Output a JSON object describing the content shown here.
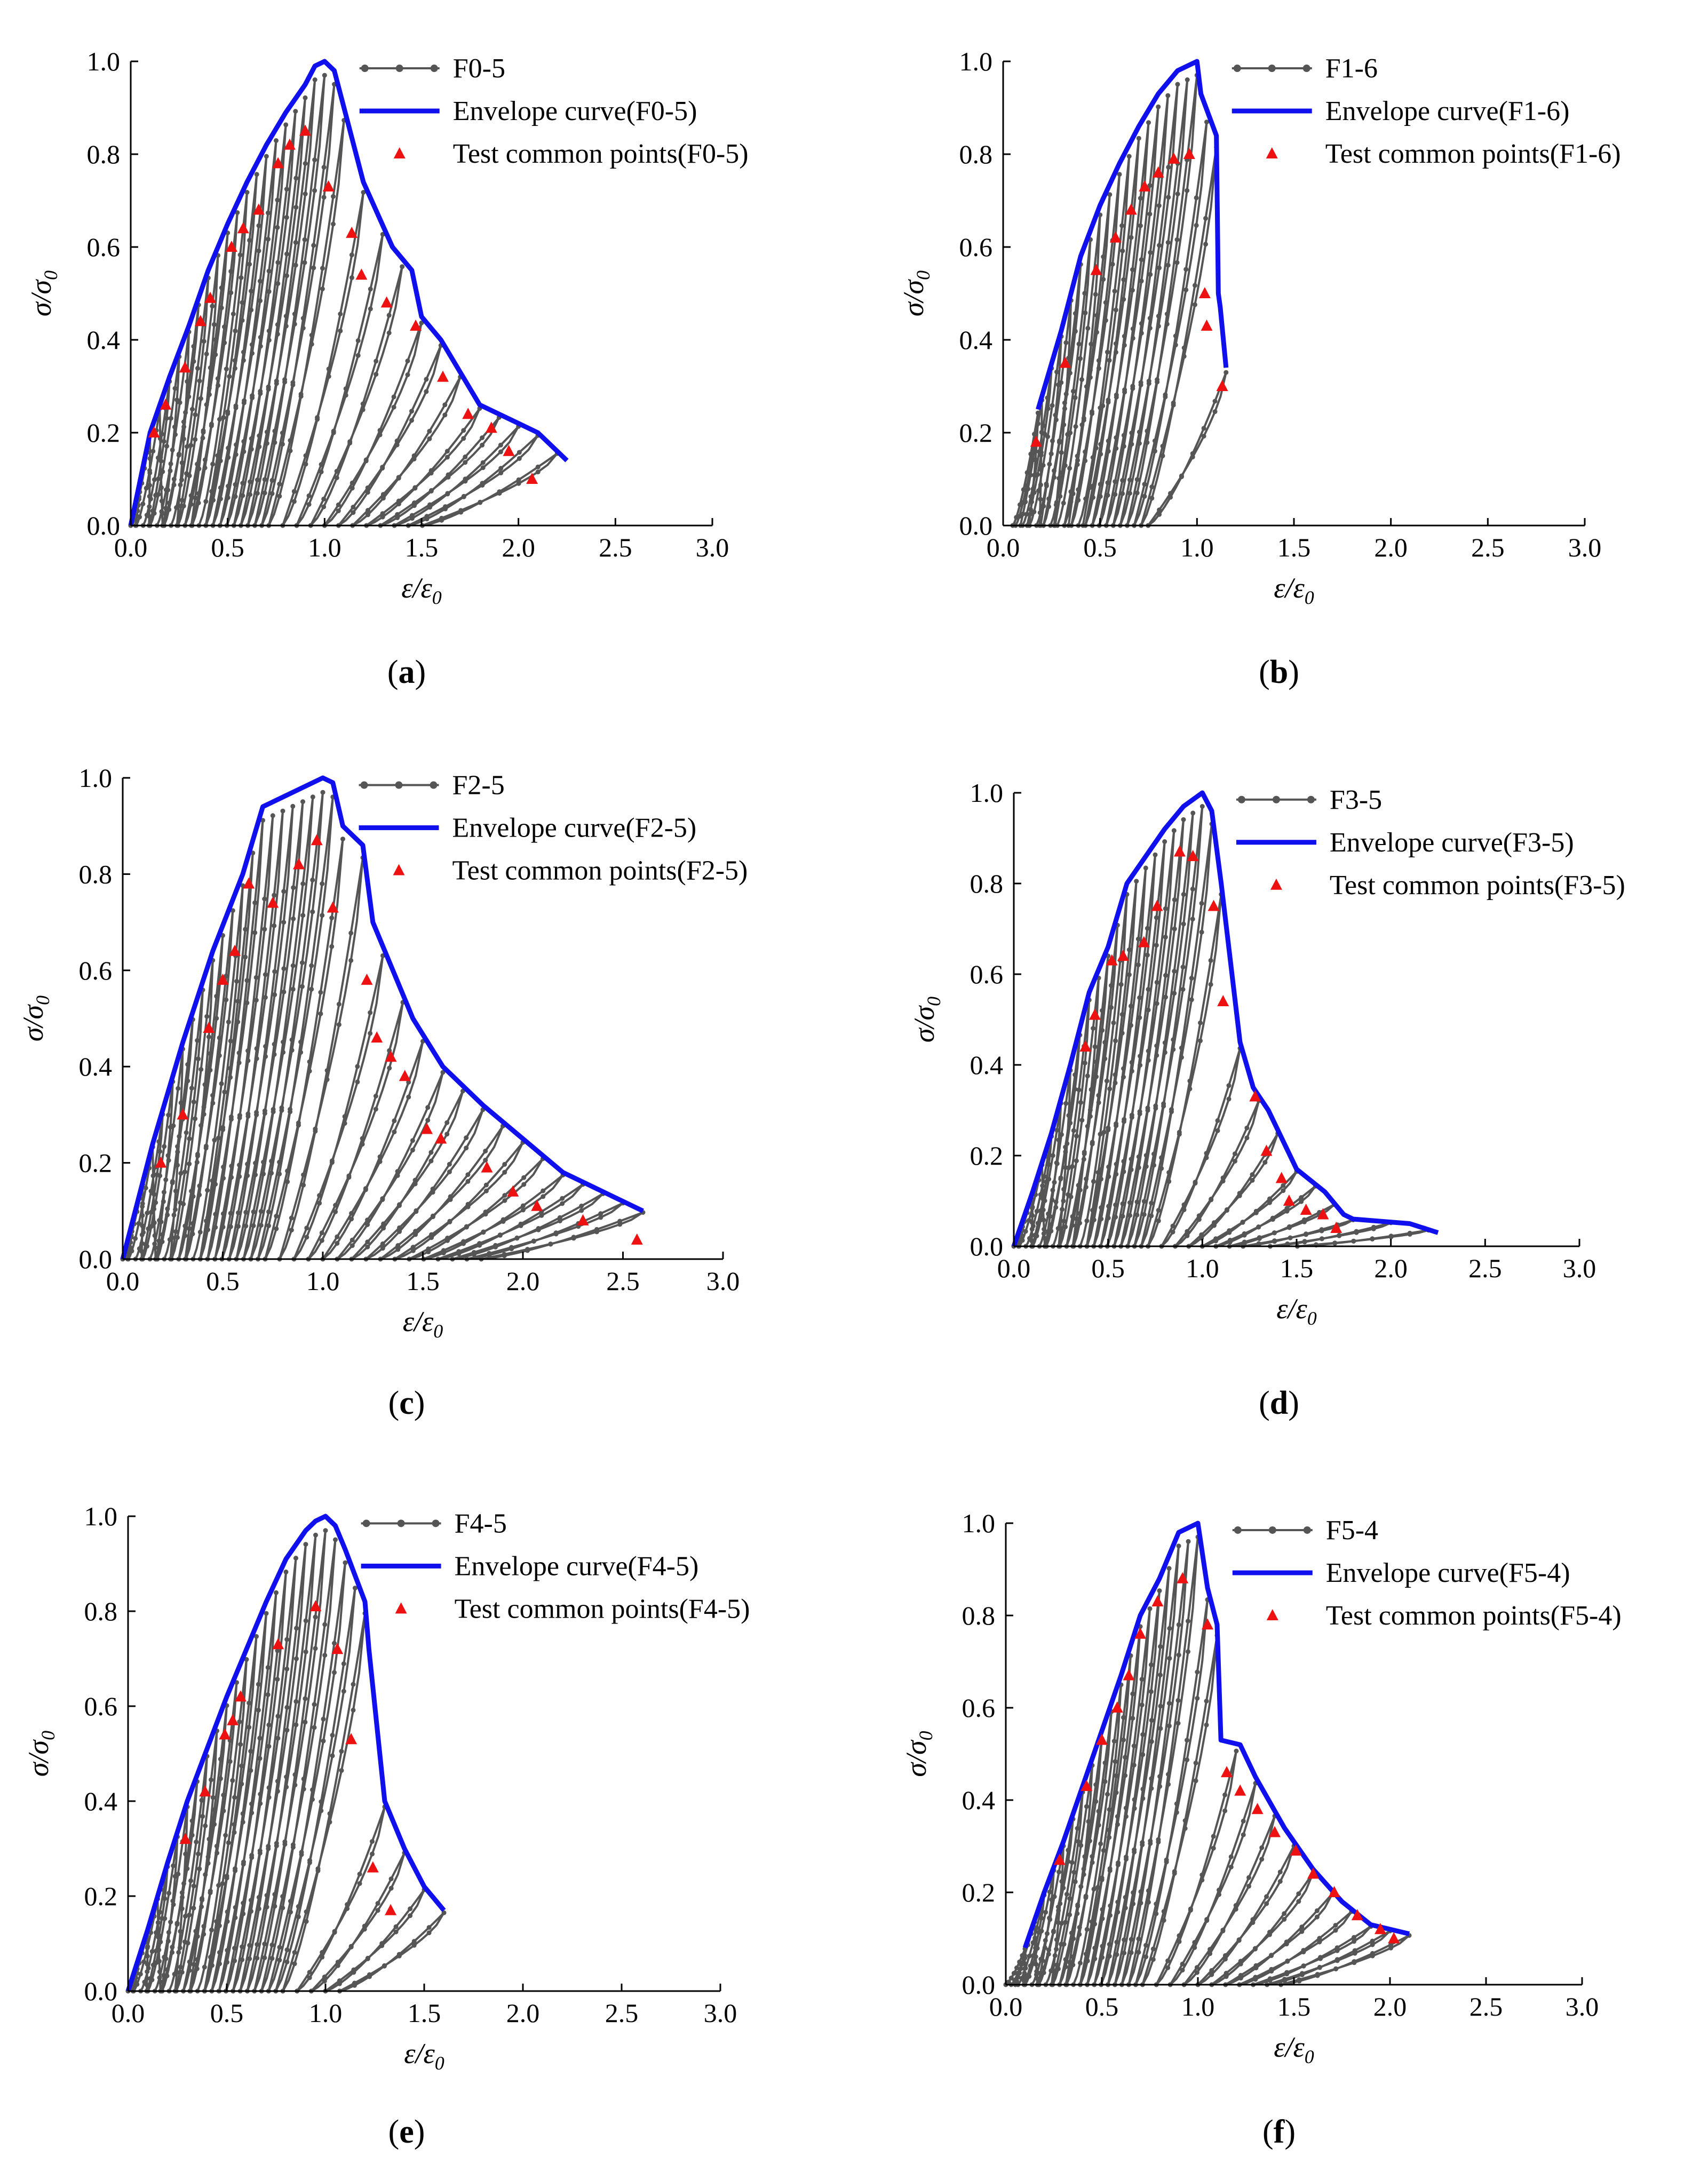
{
  "figure": {
    "xlabel": "ε/ε",
    "xlabel_sub": "0",
    "ylabel": "σ/σ",
    "ylabel_sub": "0",
    "colors": {
      "cycles": "#555555",
      "envelope": "#1010ee",
      "points": "#ee1111",
      "axis": "#000000"
    }
  },
  "chart_data": [
    {
      "type": "line",
      "panel_label": "a",
      "xlim": [
        0,
        3.0
      ],
      "ylim": [
        0,
        1.0
      ],
      "xticks": [
        "0.0",
        "0.5",
        "1.0",
        "1.5",
        "2.0",
        "2.5",
        "3.0"
      ],
      "yticks": [
        "0.0",
        "0.2",
        "0.4",
        "0.6",
        "0.8",
        "1.0"
      ],
      "legend": {
        "position": "top-right",
        "series_label": "F0-5",
        "envelope_label": "Envelope curve(F0-5)",
        "points_label": "Test common points(F0-5)"
      },
      "envelope": {
        "x": [
          0,
          0.1,
          0.2,
          0.3,
          0.4,
          0.5,
          0.6,
          0.7,
          0.8,
          0.9,
          0.95,
          1.0,
          1.05,
          1.1,
          1.2,
          1.35,
          1.45,
          1.5,
          1.6,
          1.8,
          1.9,
          2.0,
          2.1,
          2.2,
          2.25
        ],
        "y": [
          0,
          0.2,
          0.32,
          0.43,
          0.55,
          0.65,
          0.74,
          0.82,
          0.89,
          0.95,
          0.99,
          1.0,
          0.98,
          0.9,
          0.74,
          0.6,
          0.55,
          0.45,
          0.4,
          0.26,
          0.24,
          0.22,
          0.2,
          0.16,
          0.14
        ]
      },
      "common_points": {
        "x": [
          0.12,
          0.18,
          0.28,
          0.36,
          0.41,
          0.52,
          0.58,
          0.66,
          0.76,
          0.82,
          0.9,
          1.02,
          1.14,
          1.19,
          1.32,
          1.47,
          1.61,
          1.74,
          1.86,
          1.95,
          2.07
        ],
        "y": [
          0.2,
          0.26,
          0.34,
          0.44,
          0.49,
          0.6,
          0.64,
          0.68,
          0.78,
          0.82,
          0.85,
          0.73,
          0.63,
          0.54,
          0.48,
          0.43,
          0.32,
          0.24,
          0.21,
          0.16,
          0.1
        ]
      },
      "cycle_peaks_x": [
        0.05,
        0.1,
        0.15,
        0.2,
        0.25,
        0.3,
        0.35,
        0.4,
        0.45,
        0.5,
        0.55,
        0.6,
        0.65,
        0.7,
        0.75,
        0.8,
        0.85,
        0.9,
        0.95,
        1.0,
        1.05,
        1.1,
        1.2,
        1.3,
        1.4,
        1.5,
        1.6,
        1.7,
        1.8,
        1.9,
        2.0,
        2.1,
        2.2
      ]
    },
    {
      "type": "line",
      "panel_label": "b",
      "xlim": [
        0,
        3.0
      ],
      "ylim": [
        0,
        1.0
      ],
      "xticks": [
        "0.0",
        "0.5",
        "1.0",
        "1.5",
        "2.0",
        "2.5",
        "3.0"
      ],
      "yticks": [
        "0.0",
        "0.2",
        "0.4",
        "0.6",
        "0.8",
        "1.0"
      ],
      "legend": {
        "position": "top-right",
        "series_label": "F1-6",
        "envelope_label": "Envelope curve(F1-6)",
        "points_label": "Test common points(F1-6)"
      },
      "envelope": {
        "x": [
          0.18,
          0.3,
          0.4,
          0.5,
          0.6,
          0.7,
          0.8,
          0.9,
          0.95,
          1.0,
          1.02,
          1.1,
          1.11,
          1.12,
          1.15
        ],
        "y": [
          0.25,
          0.42,
          0.58,
          0.69,
          0.78,
          0.86,
          0.93,
          0.98,
          0.99,
          1.0,
          0.93,
          0.84,
          0.5,
          0.47,
          0.34
        ]
      },
      "common_points": {
        "x": [
          0.17,
          0.32,
          0.48,
          0.58,
          0.66,
          0.73,
          0.8,
          0.88,
          0.96,
          1.04,
          1.05,
          1.13
        ],
        "y": [
          0.18,
          0.35,
          0.55,
          0.62,
          0.68,
          0.73,
          0.76,
          0.79,
          0.8,
          0.5,
          0.43,
          0.3
        ]
      },
      "cycle_peaks_x": [
        0.1,
        0.15,
        0.2,
        0.25,
        0.3,
        0.35,
        0.4,
        0.45,
        0.5,
        0.55,
        0.6,
        0.65,
        0.7,
        0.75,
        0.8,
        0.85,
        0.9,
        0.95,
        1.0,
        1.05,
        1.1,
        1.15
      ]
    },
    {
      "type": "line",
      "panel_label": "c",
      "xlim": [
        0,
        3.0
      ],
      "ylim": [
        0,
        1.0
      ],
      "xticks": [
        "0.0",
        "0.5",
        "1.0",
        "1.5",
        "2.0",
        "2.5",
        "3.0"
      ],
      "yticks": [
        "0.0",
        "0.2",
        "0.4",
        "0.6",
        "0.8",
        "1.0"
      ],
      "legend": {
        "position": "top-right",
        "series_label": "F2-5",
        "envelope_label": "Envelope curve(F2-5)",
        "points_label": "Test common points(F2-5)"
      },
      "envelope": {
        "x": [
          0,
          0.15,
          0.3,
          0.45,
          0.6,
          0.7,
          0.8,
          0.9,
          1.0,
          1.05,
          1.1,
          1.2,
          1.25,
          1.35,
          1.45,
          1.6,
          1.8,
          2.0,
          2.2,
          2.4,
          2.6
        ],
        "y": [
          0,
          0.24,
          0.45,
          0.64,
          0.8,
          0.94,
          0.96,
          0.98,
          1.0,
          0.99,
          0.9,
          0.86,
          0.7,
          0.6,
          0.5,
          0.4,
          0.32,
          0.25,
          0.18,
          0.14,
          0.1
        ]
      },
      "common_points": {
        "x": [
          0.19,
          0.3,
          0.43,
          0.5,
          0.56,
          0.63,
          0.75,
          0.88,
          0.97,
          1.05,
          1.22,
          1.27,
          1.34,
          1.41,
          1.52,
          1.59,
          1.82,
          1.95,
          2.07,
          2.3,
          2.57
        ],
        "y": [
          0.2,
          0.3,
          0.48,
          0.58,
          0.64,
          0.78,
          0.74,
          0.82,
          0.87,
          0.73,
          0.58,
          0.46,
          0.42,
          0.38,
          0.27,
          0.25,
          0.19,
          0.14,
          0.11,
          0.08,
          0.04
        ]
      },
      "cycle_peaks_x": [
        0.05,
        0.1,
        0.15,
        0.2,
        0.25,
        0.3,
        0.35,
        0.4,
        0.45,
        0.5,
        0.55,
        0.6,
        0.65,
        0.7,
        0.75,
        0.8,
        0.85,
        0.9,
        0.95,
        1.0,
        1.05,
        1.1,
        1.2,
        1.3,
        1.4,
        1.5,
        1.6,
        1.7,
        1.8,
        1.9,
        2.0,
        2.1,
        2.2,
        2.3,
        2.4,
        2.5,
        2.6
      ]
    },
    {
      "type": "line",
      "panel_label": "d",
      "xlim": [
        0,
        3.0
      ],
      "ylim": [
        0,
        1.0
      ],
      "xticks": [
        "0.0",
        "0.5",
        "1.0",
        "1.5",
        "2.0",
        "2.5",
        "3.0"
      ],
      "yticks": [
        "0.0",
        "0.2",
        "0.4",
        "0.6",
        "0.8",
        "1.0"
      ],
      "legend": {
        "position": "top-right",
        "series_label": "F3-5",
        "envelope_label": "Envelope curve(F3-5)",
        "points_label": "Test common points(F3-5)"
      },
      "envelope": {
        "x": [
          0,
          0.1,
          0.2,
          0.3,
          0.4,
          0.5,
          0.6,
          0.7,
          0.8,
          0.9,
          1.0,
          1.05,
          1.1,
          1.2,
          1.27,
          1.35,
          1.5,
          1.65,
          1.75,
          1.8,
          2.1,
          2.25
        ],
        "y": [
          0,
          0.12,
          0.25,
          0.4,
          0.56,
          0.66,
          0.8,
          0.86,
          0.92,
          0.97,
          1.0,
          0.96,
          0.8,
          0.45,
          0.35,
          0.3,
          0.17,
          0.12,
          0.07,
          0.06,
          0.05,
          0.03
        ]
      },
      "common_points": {
        "x": [
          0.38,
          0.43,
          0.52,
          0.58,
          0.69,
          0.76,
          0.88,
          0.95,
          1.06,
          1.11,
          1.28,
          1.34,
          1.42,
          1.46,
          1.55,
          1.64,
          1.71
        ],
        "y": [
          0.44,
          0.51,
          0.63,
          0.64,
          0.67,
          0.75,
          0.87,
          0.86,
          0.75,
          0.54,
          0.33,
          0.21,
          0.15,
          0.1,
          0.08,
          0.07,
          0.04
        ]
      },
      "cycle_peaks_x": [
        0.05,
        0.1,
        0.15,
        0.2,
        0.25,
        0.3,
        0.35,
        0.4,
        0.45,
        0.5,
        0.55,
        0.6,
        0.65,
        0.7,
        0.75,
        0.8,
        0.85,
        0.9,
        0.95,
        1.0,
        1.05,
        1.1,
        1.2,
        1.3,
        1.4,
        1.5,
        1.6,
        1.7,
        1.8,
        2.0,
        2.2
      ]
    },
    {
      "type": "line",
      "panel_label": "e",
      "xlim": [
        0,
        3.0
      ],
      "ylim": [
        0,
        1.0
      ],
      "xticks": [
        "0.0",
        "0.5",
        "1.0",
        "1.5",
        "2.0",
        "2.5",
        "3.0"
      ],
      "yticks": [
        "0.0",
        "0.2",
        "0.4",
        "0.6",
        "0.8",
        "1.0"
      ],
      "legend": {
        "position": "top-right",
        "series_label": "F4-5",
        "envelope_label": "Envelope curve(F4-5)",
        "points_label": "Test common points(F4-5)"
      },
      "envelope": {
        "x": [
          0,
          0.1,
          0.2,
          0.3,
          0.4,
          0.5,
          0.6,
          0.7,
          0.8,
          0.9,
          0.95,
          1.0,
          1.05,
          1.1,
          1.2,
          1.22,
          1.25,
          1.3,
          1.4,
          1.5,
          1.6
        ],
        "y": [
          0,
          0.13,
          0.27,
          0.4,
          0.51,
          0.62,
          0.72,
          0.82,
          0.91,
          0.97,
          0.99,
          1.0,
          0.98,
          0.93,
          0.82,
          0.72,
          0.6,
          0.4,
          0.3,
          0.22,
          0.17
        ]
      },
      "common_points": {
        "x": [
          0.29,
          0.39,
          0.49,
          0.53,
          0.57,
          0.76,
          0.95,
          1.06,
          1.13,
          1.24,
          1.33
        ],
        "y": [
          0.32,
          0.42,
          0.54,
          0.57,
          0.62,
          0.73,
          0.81,
          0.72,
          0.53,
          0.26,
          0.17
        ]
      },
      "cycle_peaks_x": [
        0.05,
        0.1,
        0.15,
        0.2,
        0.25,
        0.3,
        0.35,
        0.4,
        0.45,
        0.5,
        0.55,
        0.6,
        0.65,
        0.7,
        0.75,
        0.8,
        0.85,
        0.9,
        0.95,
        1.0,
        1.05,
        1.1,
        1.15,
        1.2,
        1.3,
        1.4,
        1.5,
        1.6
      ]
    },
    {
      "type": "line",
      "panel_label": "f",
      "xlim": [
        0,
        3.0
      ],
      "ylim": [
        0,
        1.0
      ],
      "xticks": [
        "0.0",
        "0.5",
        "1.0",
        "1.5",
        "2.0",
        "2.5",
        "3.0"
      ],
      "yticks": [
        "0.0",
        "0.2",
        "0.4",
        "0.6",
        "0.8",
        "1.0"
      ],
      "legend": {
        "position": "top-right",
        "series_label": "F5-4",
        "envelope_label": "Envelope curve(F5-4)",
        "points_label": "Test common points(F5-4)"
      },
      "envelope": {
        "x": [
          0.1,
          0.2,
          0.3,
          0.4,
          0.5,
          0.6,
          0.7,
          0.8,
          0.9,
          0.95,
          1.0,
          1.05,
          1.1,
          1.12,
          1.22,
          1.3,
          1.45,
          1.6,
          1.75,
          1.9,
          2.1
        ],
        "y": [
          0.08,
          0.2,
          0.31,
          0.43,
          0.55,
          0.67,
          0.8,
          0.88,
          0.98,
          0.99,
          1.0,
          0.86,
          0.78,
          0.53,
          0.52,
          0.45,
          0.34,
          0.25,
          0.18,
          0.13,
          0.11
        ]
      },
      "common_points": {
        "x": [
          0.28,
          0.42,
          0.5,
          0.58,
          0.64,
          0.7,
          0.79,
          0.92,
          1.05,
          1.15,
          1.22,
          1.31,
          1.4,
          1.51,
          1.6,
          1.71,
          1.83,
          1.95,
          2.02
        ],
        "y": [
          0.27,
          0.43,
          0.53,
          0.6,
          0.67,
          0.76,
          0.83,
          0.88,
          0.78,
          0.46,
          0.42,
          0.38,
          0.33,
          0.29,
          0.24,
          0.2,
          0.15,
          0.12,
          0.1
        ]
      },
      "cycle_peaks_x": [
        0.05,
        0.1,
        0.15,
        0.2,
        0.25,
        0.3,
        0.35,
        0.4,
        0.45,
        0.5,
        0.55,
        0.6,
        0.65,
        0.7,
        0.75,
        0.8,
        0.85,
        0.9,
        0.95,
        1.0,
        1.05,
        1.1,
        1.2,
        1.3,
        1.4,
        1.5,
        1.6,
        1.7,
        1.8,
        1.9,
        2.0,
        2.1
      ]
    }
  ]
}
